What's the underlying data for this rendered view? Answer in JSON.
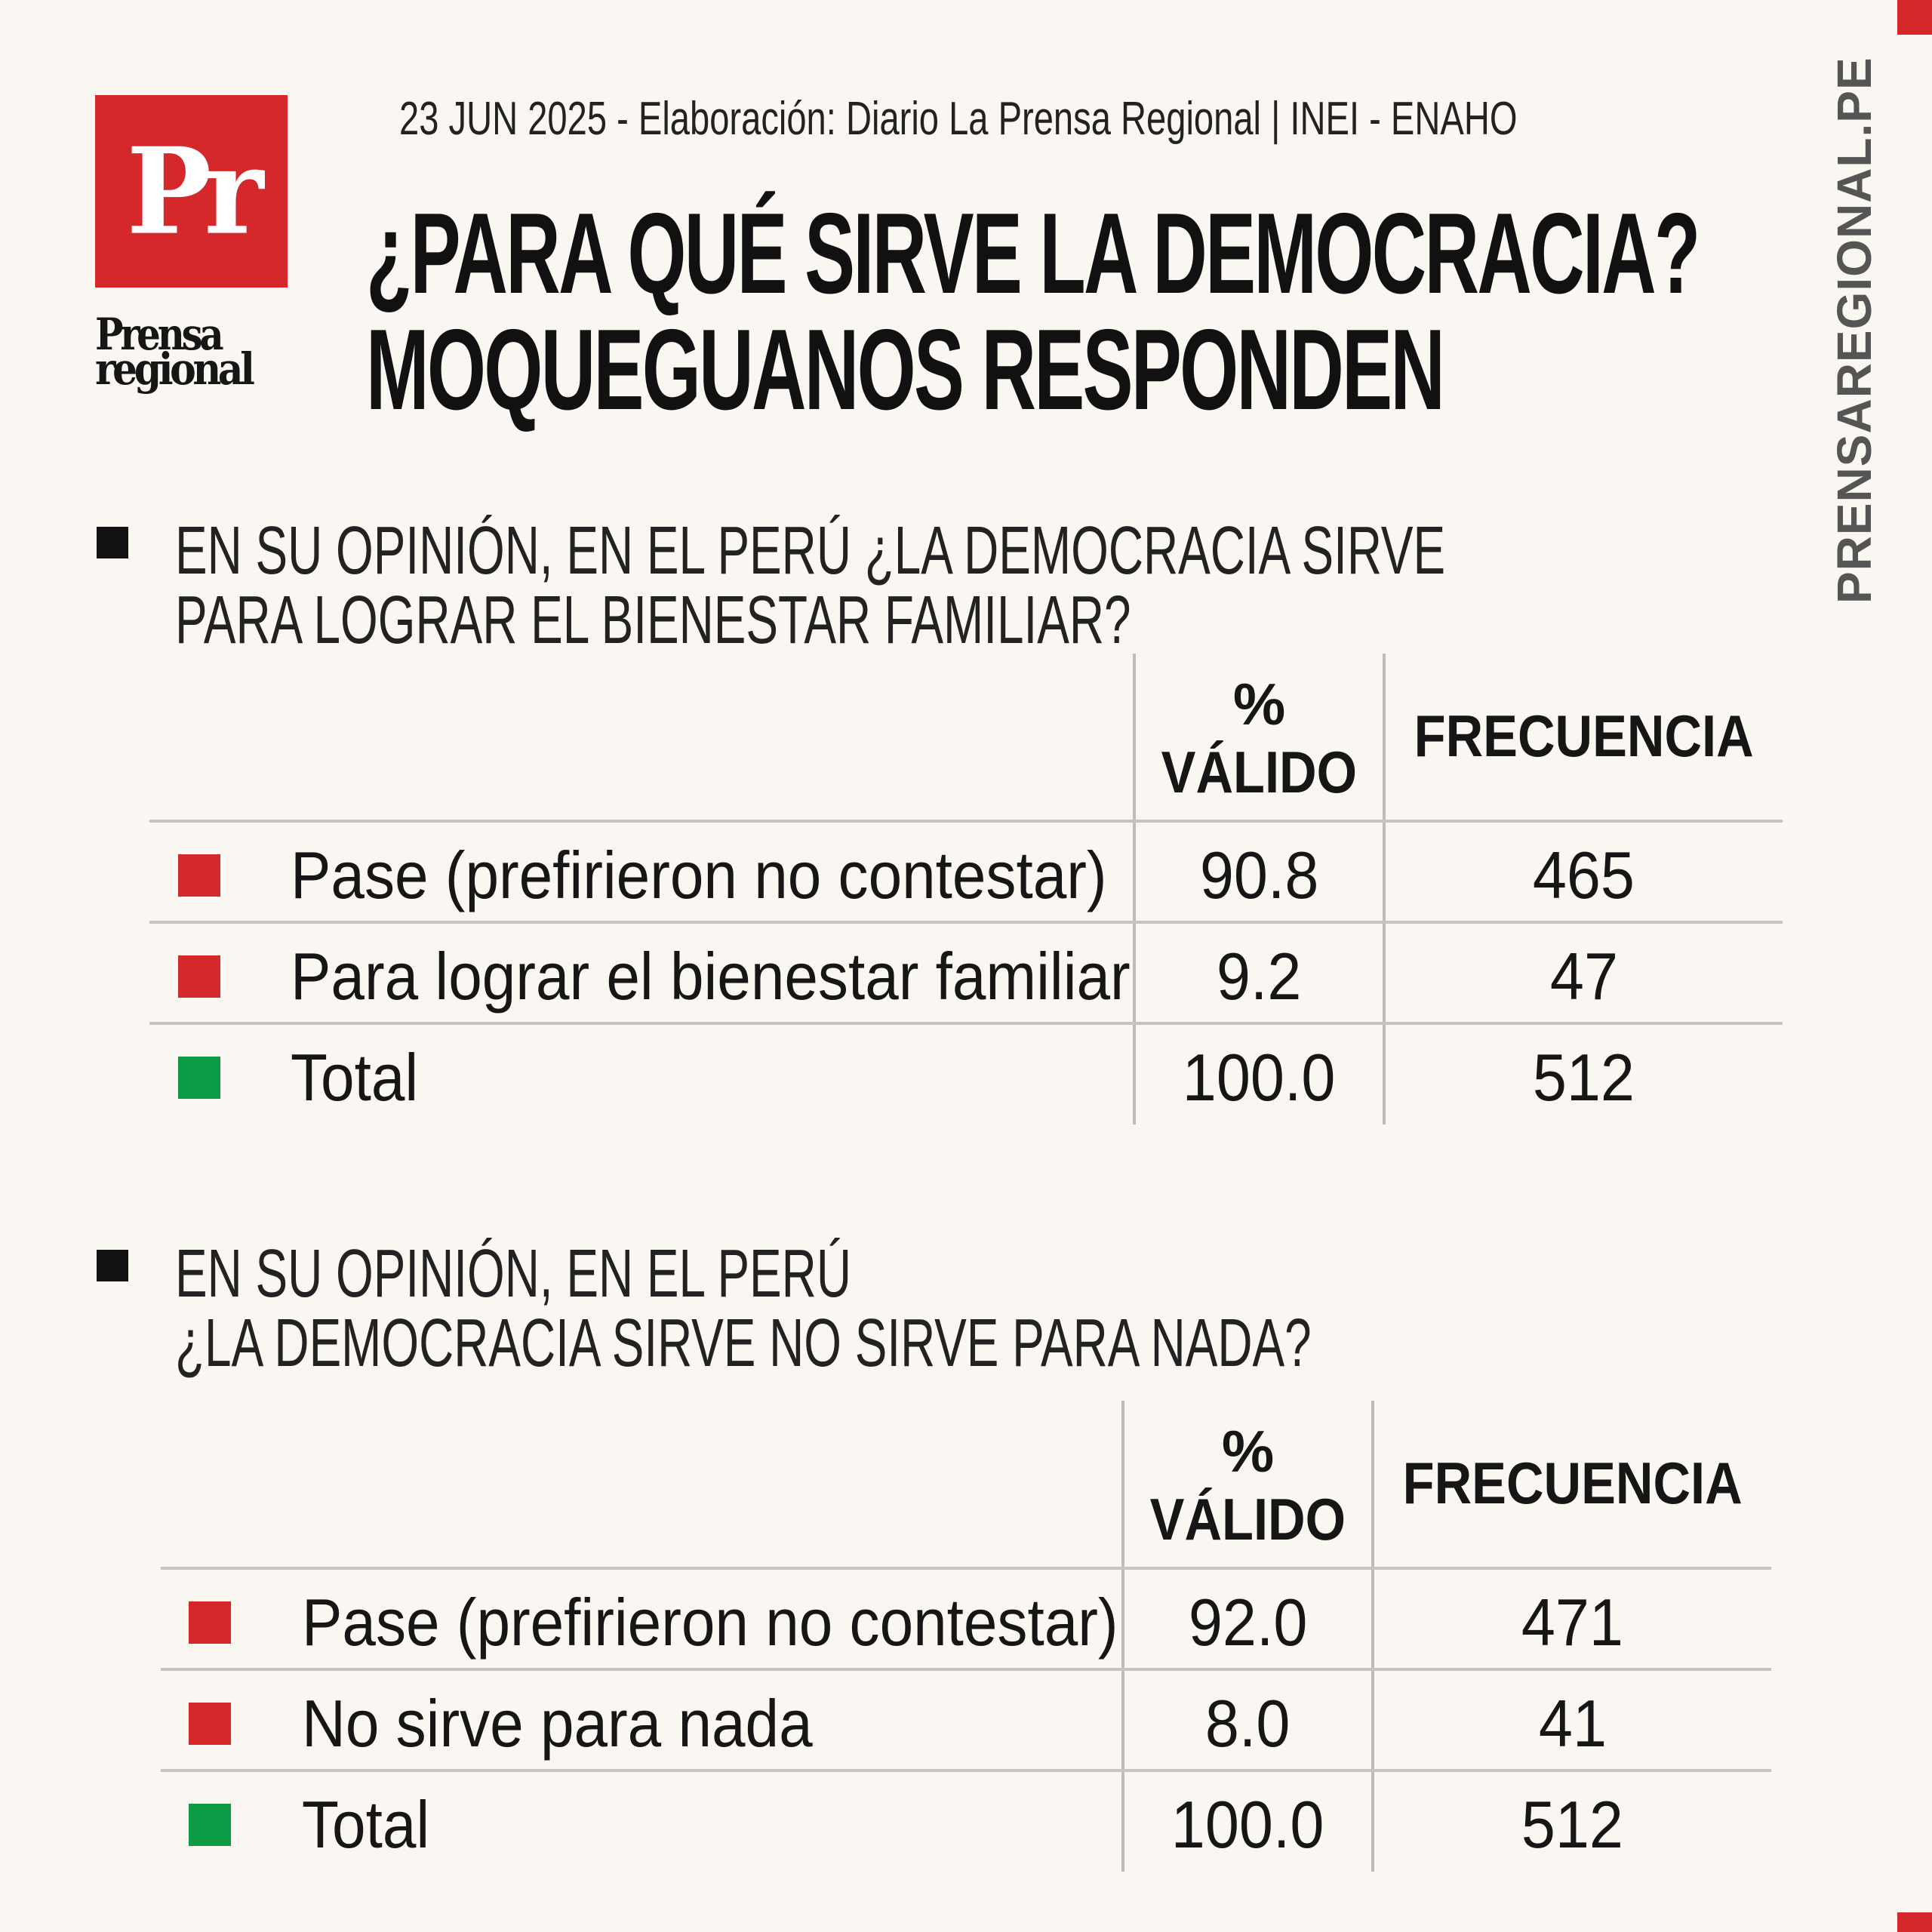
{
  "brand": {
    "logo_letters": "Pr",
    "logo_word_1": "Prensa",
    "logo_word_2": "regional",
    "side_tag": "PRENSAREGIONAL.PE",
    "colors": {
      "accent_red": "#d4282a",
      "total_green": "#0d9a45",
      "text_dark": "#161616",
      "background": "#faf6f1"
    }
  },
  "header": {
    "date_source": "23 JUN 2025 -  Elaboración: Diario La Prensa Regional | INEI - ENAHO",
    "title_line_1": "¿PARA QUÉ SIRVE LA DEMOCRACIA?",
    "title_line_2": "MOQUEGUANOS RESPONDEN"
  },
  "tables": [
    {
      "question_line_1": "EN SU OPINIÓN, EN EL PERÚ ¿LA DEMOCRACIA SIRVE",
      "question_line_2": "PARA LOGRAR EL BIENESTAR FAMILIAR?",
      "col_pct_1": "%",
      "col_pct_2": "VÁLIDO",
      "col_freq": "FRECUENCIA",
      "rows": [
        {
          "label": "Pase (prefirieron no contestar)",
          "pct": "90.8",
          "freq": "465",
          "marker": "red"
        },
        {
          "label": "Para lograr el bienestar familiar",
          "pct": "9.2",
          "freq": "47",
          "marker": "red"
        },
        {
          "label": "Total",
          "pct": "100.0",
          "freq": "512",
          "marker": "green"
        }
      ]
    },
    {
      "question_line_1": "EN SU OPINIÓN, EN EL PERÚ",
      "question_line_2": "¿LA DEMOCRACIA SIRVE NO SIRVE PARA NADA?",
      "col_pct_1": "%",
      "col_pct_2": "VÁLIDO",
      "col_freq": "FRECUENCIA",
      "rows": [
        {
          "label": "Pase (prefirieron no contestar)",
          "pct": "92.0",
          "freq": "471",
          "marker": "red"
        },
        {
          "label": "No sirve para nada",
          "pct": "8.0",
          "freq": "41",
          "marker": "red"
        },
        {
          "label": "Total",
          "pct": "100.0",
          "freq": "512",
          "marker": "green"
        }
      ]
    }
  ]
}
